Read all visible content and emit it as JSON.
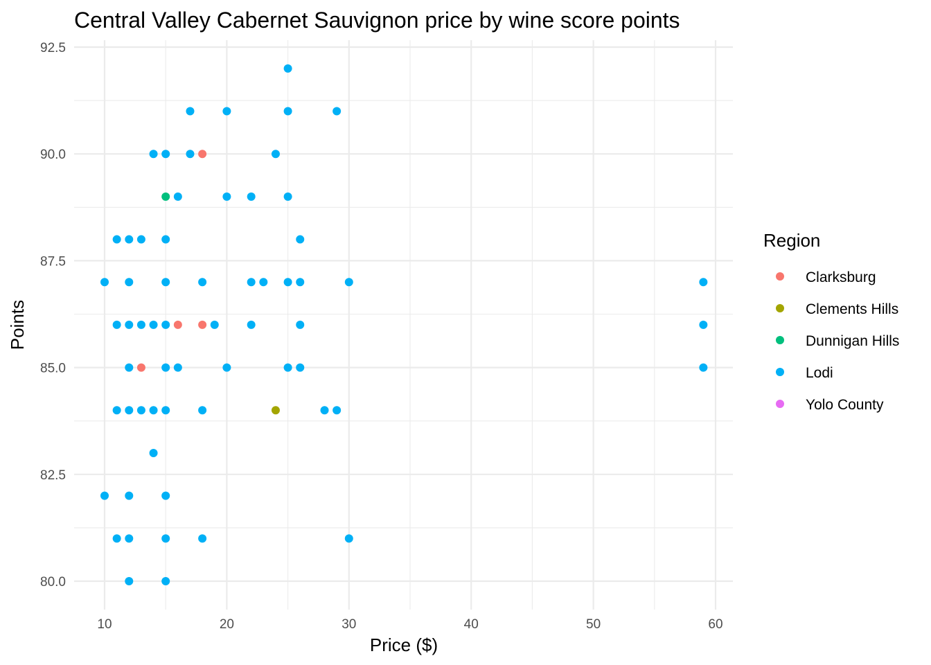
{
  "chart_data": {
    "type": "scatter",
    "title": "Central Valley Cabernet Sauvignon price by wine score points",
    "xlabel": "Price ($)",
    "ylabel": "Points",
    "xlim": [
      7.5,
      61.5
    ],
    "ylim": [
      79.5,
      92.6
    ],
    "x_ticks": [
      10,
      20,
      30,
      40,
      50,
      60
    ],
    "x_tick_labels": [
      "10",
      "20",
      "30",
      "40",
      "50",
      "60"
    ],
    "y_ticks": [
      80,
      82.5,
      85,
      87.5,
      90,
      92.5
    ],
    "y_tick_labels": [
      "80.0",
      "82.5",
      "85.0",
      "87.5",
      "90.0",
      "92.5"
    ],
    "grid": true,
    "legend": {
      "title": "Region",
      "position": "right",
      "entries": [
        {
          "name": "Clarksburg",
          "color": "#F8766D"
        },
        {
          "name": "Clements Hills",
          "color": "#A3A500"
        },
        {
          "name": "Dunnigan Hills",
          "color": "#00BF7D"
        },
        {
          "name": "Lodi",
          "color": "#00B0F6"
        },
        {
          "name": "Yolo County",
          "color": "#E76BF3"
        }
      ]
    },
    "series": [
      {
        "name": "Lodi",
        "color": "#00B0F6",
        "points": [
          [
            25,
            92
          ],
          [
            17,
            91
          ],
          [
            20,
            91
          ],
          [
            25,
            91
          ],
          [
            29,
            91
          ],
          [
            14,
            90
          ],
          [
            15,
            90
          ],
          [
            17,
            90
          ],
          [
            24,
            90
          ],
          [
            16,
            89
          ],
          [
            20,
            89
          ],
          [
            22,
            89
          ],
          [
            25,
            89
          ],
          [
            11,
            88
          ],
          [
            12,
            88
          ],
          [
            13,
            88
          ],
          [
            15,
            88
          ],
          [
            26,
            88
          ],
          [
            10,
            87
          ],
          [
            12,
            87
          ],
          [
            15,
            87
          ],
          [
            18,
            87
          ],
          [
            22,
            87
          ],
          [
            23,
            87
          ],
          [
            25,
            87
          ],
          [
            26,
            87
          ],
          [
            30,
            87
          ],
          [
            59,
            87
          ],
          [
            11,
            86
          ],
          [
            12,
            86
          ],
          [
            13,
            86
          ],
          [
            14,
            86
          ],
          [
            15,
            86
          ],
          [
            19,
            86
          ],
          [
            22,
            86
          ],
          [
            26,
            86
          ],
          [
            59,
            86
          ],
          [
            12,
            85
          ],
          [
            15,
            85
          ],
          [
            16,
            85
          ],
          [
            20,
            85
          ],
          [
            25,
            85
          ],
          [
            26,
            85
          ],
          [
            59,
            85
          ],
          [
            11,
            84
          ],
          [
            12,
            84
          ],
          [
            13,
            84
          ],
          [
            14,
            84
          ],
          [
            15,
            84
          ],
          [
            18,
            84
          ],
          [
            28,
            84
          ],
          [
            29,
            84
          ],
          [
            14,
            83
          ],
          [
            10,
            82
          ],
          [
            12,
            82
          ],
          [
            15,
            82
          ],
          [
            11,
            81
          ],
          [
            12,
            81
          ],
          [
            15,
            81
          ],
          [
            18,
            81
          ],
          [
            30,
            81
          ],
          [
            12,
            80
          ],
          [
            15,
            80
          ]
        ]
      },
      {
        "name": "Clarksburg",
        "color": "#F8766D",
        "points": [
          [
            18,
            90
          ],
          [
            16,
            86
          ],
          [
            18,
            86
          ],
          [
            13,
            85
          ]
        ]
      },
      {
        "name": "Clements Hills",
        "color": "#A3A500",
        "points": [
          [
            24,
            84
          ]
        ]
      },
      {
        "name": "Dunnigan Hills",
        "color": "#00BF7D",
        "points": [
          [
            15,
            89
          ]
        ]
      }
    ]
  }
}
